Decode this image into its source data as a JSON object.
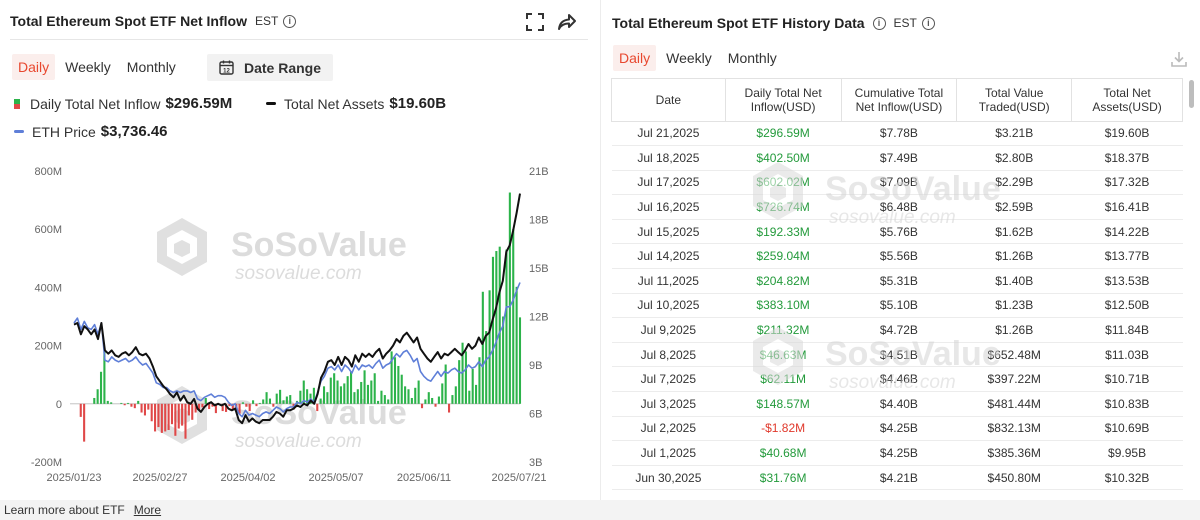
{
  "left": {
    "title": "Total Ethereum Spot ETF Net Inflow",
    "tz": "EST",
    "tabs": [
      "Daily",
      "Weekly",
      "Monthly"
    ],
    "active_tab": 0,
    "date_range_label": "Date Range",
    "calendar_day": "12",
    "legend": {
      "inflow_label": "Daily Total Net Inflow",
      "inflow_value": "$296.59M",
      "assets_label": "Total Net Assets",
      "assets_value": "$19.60B",
      "eth_label": "ETH Price",
      "eth_value": "$3,736.46"
    }
  },
  "watermark": {
    "brand": "SoSoValue",
    "site": "sosovalue.com"
  },
  "chart_data": {
    "type": "bar",
    "x_ticks": [
      "2025/01/23",
      "2025/02/27",
      "2025/04/02",
      "2025/05/07",
      "2025/06/11",
      "2025/07/21"
    ],
    "y_left_ticks": [
      "800M",
      "600M",
      "400M",
      "200M",
      "0",
      "-200M"
    ],
    "y_left_range": [
      -200,
      800
    ],
    "y_right_ticks": [
      "21B",
      "18B",
      "15B",
      "12B",
      "9B",
      "6B",
      "3B"
    ],
    "y_right_range": [
      3,
      21
    ],
    "series": [
      {
        "name": "Daily Total Net Inflow",
        "unit": "M",
        "values": [
          0,
          0,
          -45,
          -130,
          0,
          0,
          20,
          50,
          110,
          180,
          10,
          5,
          0,
          0,
          3,
          -5,
          3,
          -10,
          -15,
          10,
          -30,
          -40,
          -20,
          -60,
          -95,
          -80,
          -100,
          -95,
          -90,
          -70,
          -110,
          -85,
          -75,
          -120,
          -40,
          -55,
          -30,
          -20,
          -12,
          20,
          -18,
          -10,
          -32,
          0,
          -25,
          -28,
          -8,
          -23,
          -15,
          -34,
          5,
          -10,
          -25,
          12,
          -8,
          3,
          15,
          40,
          18,
          -10,
          35,
          48,
          12,
          25,
          30,
          -20,
          10,
          45,
          80,
          50,
          35,
          55,
          -25,
          18,
          60,
          40,
          90,
          105,
          80,
          60,
          70,
          95,
          110,
          40,
          50,
          75,
          115,
          65,
          80,
          105,
          10,
          45,
          30,
          15,
          180,
          160,
          130,
          100,
          60,
          50,
          20,
          55,
          80,
          -15,
          15,
          40,
          20,
          -10,
          25,
          70,
          135,
          -30,
          30,
          60,
          150,
          210,
          180,
          45,
          120,
          65,
          160,
          385,
          250,
          390,
          505,
          525,
          540,
          300,
          530,
          726,
          600,
          402,
          297
        ]
      },
      {
        "name": "Total Net Assets",
        "unit": "B",
        "values": [
          11.5,
          11.6,
          10.9,
          11.4,
          11.2,
          10.9,
          11.2,
          10.6,
          11.6,
          9.9,
          9.7,
          9.9,
          9.6,
          9.5,
          9.7,
          9.8,
          9.6,
          9.8,
          10.1,
          9.7,
          9.6,
          9.7,
          9.4,
          8.9,
          8.3,
          8.0,
          7.7,
          7.5,
          7.2,
          7.0,
          7.3,
          6.8,
          7.1,
          6.7,
          6.6,
          6.9,
          6.3,
          6.1,
          6.4,
          6.6,
          6.7,
          6.5,
          6.6,
          6.5,
          6.6,
          6.3,
          6.2,
          6.3,
          5.6,
          5.4,
          5.9,
          5.5,
          5.7,
          5.5,
          5.4,
          5.6,
          5.6,
          5.6,
          5.8,
          6.1,
          6.0,
          5.8,
          6.2,
          6.2,
          6.3,
          6.5,
          6.4,
          6.6,
          6.5,
          6.8,
          6.6,
          7.2,
          8.2,
          8.6,
          9.2,
          9.3,
          9.0,
          9.5,
          9.0,
          9.5,
          9.3,
          8.9,
          9.6,
          9.2,
          9.7,
          9.5,
          9.7,
          9.5,
          9.8,
          10.0,
          9.4,
          9.7,
          9.9,
          10.2,
          10.6,
          10.4,
          10.8,
          11.0,
          10.7,
          10.4,
          10.7,
          10.0,
          9.7,
          9.4,
          9.2,
          9.5,
          9.8,
          9.4,
          9.7,
          9.6,
          9.8,
          10.0,
          9.8,
          9.6,
          9.9,
          10.3,
          10.0,
          10.2,
          10.7,
          10.3,
          10.8,
          11.0,
          11.8,
          12.5,
          13.5,
          14.2,
          16.0,
          16.4,
          17.3,
          18.4,
          19.6
        ]
      },
      {
        "name": "ETH Price",
        "values": [
          11.6,
          11.9,
          11.2,
          11.7,
          11.3,
          11.2,
          11.5,
          10.9,
          11.6,
          9.3,
          9.2,
          9.5,
          9.3,
          9.2,
          9.3,
          9.4,
          9.2,
          9.3,
          9.5,
          9.2,
          9.0,
          9.1,
          8.8,
          8.5,
          7.9,
          7.8,
          7.6,
          7.6,
          7.4,
          7.3,
          7.4,
          7.3,
          7.4,
          7.4,
          7.3,
          7.4,
          6.9,
          6.8,
          7.0,
          7.1,
          7.2,
          7.0,
          7.1,
          7.1,
          7.0,
          6.7,
          6.5,
          6.6,
          6.0,
          5.8,
          6.2,
          5.9,
          6.0,
          5.9,
          5.8,
          6.0,
          6.1,
          6.0,
          6.2,
          6.4,
          6.3,
          6.1,
          6.3,
          6.4,
          6.4,
          6.7,
          6.6,
          6.8,
          6.7,
          6.9,
          6.7,
          7.3,
          8.0,
          8.3,
          8.8,
          8.9,
          8.7,
          9.0,
          8.6,
          9.0,
          8.8,
          8.5,
          9.0,
          8.7,
          9.0,
          8.9,
          9.0,
          8.8,
          9.1,
          9.3,
          8.8,
          9.0,
          9.1,
          9.4,
          9.7,
          9.5,
          9.8,
          9.9,
          9.6,
          9.2,
          9.4,
          8.6,
          8.3,
          8.1,
          8.0,
          8.3,
          8.6,
          8.3,
          8.6,
          8.5,
          8.7,
          8.8,
          8.6,
          8.5,
          8.7,
          9.0,
          8.8,
          8.9,
          9.2,
          8.9,
          9.3,
          9.5,
          9.9,
          10.4,
          11.0,
          11.4,
          12.6,
          12.6,
          13.0,
          13.6,
          14.1
        ]
      }
    ],
    "legend": "top-left",
    "grid": false
  },
  "right": {
    "title": "Total Ethereum Spot ETF History Data",
    "tz": "EST",
    "tabs": [
      "Daily",
      "Weekly",
      "Monthly"
    ],
    "active_tab": 0,
    "columns": [
      [
        "Date"
      ],
      [
        "Daily Total Net",
        "Inflow(USD)"
      ],
      [
        "Cumulative Total",
        "Net Inflow(USD)"
      ],
      [
        "Total Value",
        "Traded(USD)"
      ],
      [
        "Total Net",
        "Assets(USD)"
      ]
    ],
    "rows": [
      [
        "Jul 21,2025",
        "$296.59M",
        "$7.78B",
        "$3.21B",
        "$19.60B"
      ],
      [
        "Jul 18,2025",
        "$402.50M",
        "$7.49B",
        "$2.80B",
        "$18.37B"
      ],
      [
        "Jul 17,2025",
        "$602.02M",
        "$7.09B",
        "$2.29B",
        "$17.32B"
      ],
      [
        "Jul 16,2025",
        "$726.74M",
        "$6.48B",
        "$2.59B",
        "$16.41B"
      ],
      [
        "Jul 15,2025",
        "$192.33M",
        "$5.76B",
        "$1.62B",
        "$14.22B"
      ],
      [
        "Jul 14,2025",
        "$259.04M",
        "$5.56B",
        "$1.26B",
        "$13.77B"
      ],
      [
        "Jul 11,2025",
        "$204.82M",
        "$5.31B",
        "$1.40B",
        "$13.53B"
      ],
      [
        "Jul 10,2025",
        "$383.10M",
        "$5.10B",
        "$1.23B",
        "$12.50B"
      ],
      [
        "Jul 9,2025",
        "$211.32M",
        "$4.72B",
        "$1.26B",
        "$11.84B"
      ],
      [
        "Jul 8,2025",
        "$46.63M",
        "$4.51B",
        "$652.48M",
        "$11.03B"
      ],
      [
        "Jul 7,2025",
        "$62.11M",
        "$4.46B",
        "$397.22M",
        "$10.71B"
      ],
      [
        "Jul 3,2025",
        "$148.57M",
        "$4.40B",
        "$481.44M",
        "$10.83B"
      ],
      [
        "Jul 2,2025",
        "-$1.82M",
        "$4.25B",
        "$832.13M",
        "$10.69B"
      ],
      [
        "Jul 1,2025",
        "$40.68M",
        "$4.25B",
        "$385.36M",
        "$9.95B"
      ],
      [
        "Jun 30,2025",
        "$31.76M",
        "$4.21B",
        "$450.80M",
        "$10.32B"
      ]
    ]
  },
  "footer": {
    "text": "Learn more about ETF",
    "link": "More"
  },
  "colors": {
    "accent": "#e8482f",
    "inflow_pos": "#2cb34a",
    "inflow_neg": "#e04848",
    "assets_line": "#111111",
    "eth_line": "#5f7fd8",
    "table_pos": "#239a3b",
    "table_neg": "#e0392c"
  },
  "icons": {
    "expand": "expand-icon",
    "share": "share-icon",
    "calendar": "calendar-icon",
    "download": "download-icon",
    "info": "info-icon"
  }
}
